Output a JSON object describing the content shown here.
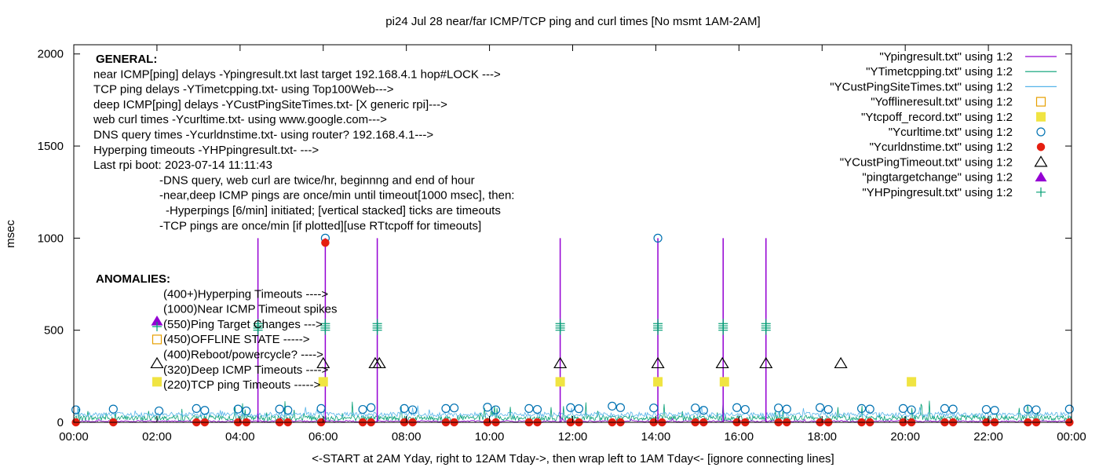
{
  "chart_data": {
    "type": "line",
    "title": "pi24 Jul 28  near/far ICMP/TCP ping and curl times [No msmt 1AM-2AM]",
    "xlabel": "<-START at 2AM Yday, right to 12AM Tday->, then wrap left to 1AM Tday<- [ignore connecting lines]",
    "ylabel": "msec",
    "xlim": [
      0,
      24
    ],
    "ylim": [
      0,
      2050
    ],
    "x_ticks": [
      "00:00",
      "02:00",
      "04:00",
      "06:00",
      "08:00",
      "10:00",
      "12:00",
      "14:00",
      "16:00",
      "18:00",
      "20:00",
      "22:00",
      "00:00"
    ],
    "y_ticks": [
      "0",
      "500",
      "1000",
      "1500",
      "2000"
    ],
    "y_tick_values": [
      0,
      500,
      1000,
      1500,
      2000
    ],
    "grid": false,
    "legend_position": "top-right",
    "colors": {
      "ping": "#9400d3",
      "tcp": "#009e73",
      "custping": "#56b4e9",
      "offline": "#e69f00",
      "tcpoff": "#f0e442",
      "curl": "#0072b2",
      "dns": "#e51e10",
      "custtimeout": "#000000",
      "pingtarget": "#9400d3",
      "hpping": "#009e73"
    },
    "legend": [
      {
        "label": "\"Ypingresult.txt\" using 1:2",
        "marker": "line",
        "color": "#9400d3"
      },
      {
        "label": "\"YTimetcpping.txt\" using 1:2",
        "marker": "line",
        "color": "#009e73"
      },
      {
        "label": "\"YCustPingSiteTimes.txt\" using 1:2",
        "marker": "line",
        "color": "#56b4e9"
      },
      {
        "label": "\"Yofflineresult.txt\" using 1:2",
        "marker": "open-square",
        "color": "#e69f00"
      },
      {
        "label": "\"Ytcpoff_record.txt\" using 1:2",
        "marker": "filled-square",
        "color": "#f0e442"
      },
      {
        "label": "\"Ycurltime.txt\" using 1:2",
        "marker": "open-circle",
        "color": "#0072b2"
      },
      {
        "label": "\"Ycurldnstime.txt\" using 1:2",
        "marker": "filled-circle",
        "color": "#e51e10"
      },
      {
        "label": "\"YCustPingTimeout.txt\" using 1:2",
        "marker": "open-triangle",
        "color": "#000000"
      },
      {
        "label": "\"pingtargetchange\" using 1:2",
        "marker": "filled-triangle",
        "color": "#9400d3"
      },
      {
        "label": "\"YHPpingresult.txt\" using 1:2",
        "marker": "plus",
        "color": "#009e73"
      }
    ],
    "notes_general": [
      "GENERAL:",
      "near ICMP[ping] delays -Ypingresult.txt last target 192.168.4.1 hop#LOCK --->",
      "TCP ping delays -YTimetcpping.txt- using Top100Web--->",
      "deep ICMP[ping] delays -YCustPingSiteTimes.txt- [X generic rpi]--->",
      "web curl times -Ycurltime.txt- using www.google.com--->",
      "DNS query times -Ycurldnstime.txt- using router? 192.168.4.1--->",
      "Hyperping timeouts -YHPpingresult.txt- --->",
      "Last rpi boot: 2023-07-14 11:11:43",
      "-DNS query, web curl are twice/hr, beginnng and end of hour",
      "-near,deep ICMP pings are once/min until timeout[1000 msec], then:",
      "-Hyperpings [6/min] initiated; [vertical stacked] ticks are timeouts",
      "-TCP pings are once/min [if plotted][use RTtcpoff for timeouts]"
    ],
    "notes_anomalies": [
      "ANOMALIES:",
      "(400+)Hyperping Timeouts ---->",
      "(1000)Near ICMP Timeout spikes",
      "(550)Ping Target Changes --->",
      "(450)OFFLINE STATE ----->",
      "(400)Reboot/powercycle? ---->",
      "(320)Deep ICMP Timeouts ---->",
      "(220)TCP ping Timeouts ----->"
    ],
    "series_spikes_ping": [
      4.43,
      6.05,
      7.3,
      11.7,
      14.05,
      15.62,
      16.65
    ],
    "series_curl": [
      {
        "x": 0.05,
        "y": 68
      },
      {
        "x": 0.95,
        "y": 72
      },
      {
        "x": 2.05,
        "y": 62
      },
      {
        "x": 2.95,
        "y": 75
      },
      {
        "x": 3.15,
        "y": 65
      },
      {
        "x": 3.95,
        "y": 72
      },
      {
        "x": 4.15,
        "y": 62
      },
      {
        "x": 4.95,
        "y": 72
      },
      {
        "x": 5.15,
        "y": 66
      },
      {
        "x": 5.95,
        "y": 75
      },
      {
        "x": 6.05,
        "y": 1000
      },
      {
        "x": 6.95,
        "y": 70
      },
      {
        "x": 7.15,
        "y": 80
      },
      {
        "x": 7.95,
        "y": 75
      },
      {
        "x": 8.15,
        "y": 68
      },
      {
        "x": 8.95,
        "y": 75
      },
      {
        "x": 9.15,
        "y": 78
      },
      {
        "x": 9.95,
        "y": 82
      },
      {
        "x": 10.15,
        "y": 68
      },
      {
        "x": 10.95,
        "y": 75
      },
      {
        "x": 11.15,
        "y": 70
      },
      {
        "x": 11.95,
        "y": 80
      },
      {
        "x": 12.15,
        "y": 74
      },
      {
        "x": 12.95,
        "y": 88
      },
      {
        "x": 13.15,
        "y": 80
      },
      {
        "x": 13.95,
        "y": 78
      },
      {
        "x": 14.05,
        "y": 1000
      },
      {
        "x": 14.95,
        "y": 78
      },
      {
        "x": 15.15,
        "y": 65
      },
      {
        "x": 15.95,
        "y": 80
      },
      {
        "x": 16.15,
        "y": 70
      },
      {
        "x": 16.95,
        "y": 78
      },
      {
        "x": 17.15,
        "y": 72
      },
      {
        "x": 17.95,
        "y": 80
      },
      {
        "x": 18.15,
        "y": 70
      },
      {
        "x": 18.95,
        "y": 75
      },
      {
        "x": 19.15,
        "y": 72
      },
      {
        "x": 19.95,
        "y": 75
      },
      {
        "x": 20.15,
        "y": 68
      },
      {
        "x": 20.95,
        "y": 75
      },
      {
        "x": 21.15,
        "y": 72
      },
      {
        "x": 21.95,
        "y": 70
      },
      {
        "x": 22.15,
        "y": 65
      },
      {
        "x": 22.95,
        "y": 72
      },
      {
        "x": 23.15,
        "y": 68
      },
      {
        "x": 23.95,
        "y": 72
      }
    ],
    "series_dns": [
      {
        "x": 0.05,
        "y": 0
      },
      {
        "x": 0.95,
        "y": 0
      },
      {
        "x": 2.95,
        "y": 0
      },
      {
        "x": 3.15,
        "y": 0
      },
      {
        "x": 3.95,
        "y": 0
      },
      {
        "x": 4.15,
        "y": 0
      },
      {
        "x": 4.95,
        "y": 0
      },
      {
        "x": 5.15,
        "y": 0
      },
      {
        "x": 5.95,
        "y": 0
      },
      {
        "x": 6.05,
        "y": 975
      },
      {
        "x": 6.95,
        "y": 0
      },
      {
        "x": 7.15,
        "y": 0
      },
      {
        "x": 7.95,
        "y": 0
      },
      {
        "x": 8.15,
        "y": 0
      },
      {
        "x": 8.95,
        "y": 0
      },
      {
        "x": 9.15,
        "y": 0
      },
      {
        "x": 9.95,
        "y": 0
      },
      {
        "x": 10.15,
        "y": 0
      },
      {
        "x": 10.95,
        "y": 0
      },
      {
        "x": 11.15,
        "y": 0
      },
      {
        "x": 11.95,
        "y": 0
      },
      {
        "x": 12.15,
        "y": 0
      },
      {
        "x": 12.95,
        "y": 0
      },
      {
        "x": 13.15,
        "y": 0
      },
      {
        "x": 13.95,
        "y": 0
      },
      {
        "x": 14.15,
        "y": 0
      },
      {
        "x": 14.95,
        "y": 0
      },
      {
        "x": 15.15,
        "y": 0
      },
      {
        "x": 15.95,
        "y": 0
      },
      {
        "x": 16.15,
        "y": 0
      },
      {
        "x": 16.95,
        "y": 0
      },
      {
        "x": 17.15,
        "y": 0
      },
      {
        "x": 17.95,
        "y": 0
      },
      {
        "x": 18.15,
        "y": 0
      },
      {
        "x": 18.95,
        "y": 0
      },
      {
        "x": 19.15,
        "y": 0
      },
      {
        "x": 19.95,
        "y": 0
      },
      {
        "x": 20.15,
        "y": 0
      },
      {
        "x": 20.95,
        "y": 0
      },
      {
        "x": 21.15,
        "y": 0
      },
      {
        "x": 21.95,
        "y": 0
      },
      {
        "x": 22.15,
        "y": 0
      },
      {
        "x": 22.95,
        "y": 0
      },
      {
        "x": 23.15,
        "y": 0
      },
      {
        "x": 23.95,
        "y": 0
      }
    ],
    "series_tcpoff": [
      {
        "x": 6.0,
        "y": 220
      },
      {
        "x": 11.7,
        "y": 220
      },
      {
        "x": 14.05,
        "y": 220
      },
      {
        "x": 15.65,
        "y": 220
      },
      {
        "x": 20.15,
        "y": 220
      }
    ],
    "series_custtimeout": [
      {
        "x": 6.0,
        "y": 320
      },
      {
        "x": 7.25,
        "y": 320
      },
      {
        "x": 7.35,
        "y": 320
      },
      {
        "x": 11.7,
        "y": 320
      },
      {
        "x": 14.05,
        "y": 320
      },
      {
        "x": 15.6,
        "y": 320
      },
      {
        "x": 16.65,
        "y": 320
      },
      {
        "x": 18.45,
        "y": 320
      }
    ],
    "series_hpping_stacks": [
      4.43,
      6.05,
      7.3,
      11.7,
      14.05,
      15.62,
      16.65
    ],
    "anomaly_marker_samples": [
      {
        "marker": "filled-triangle",
        "y": 550
      },
      {
        "marker": "plus",
        "y": 520
      },
      {
        "marker": "open-square",
        "y": 450
      },
      {
        "marker": "open-triangle",
        "y": 320
      },
      {
        "marker": "filled-square",
        "y": 220
      }
    ]
  }
}
